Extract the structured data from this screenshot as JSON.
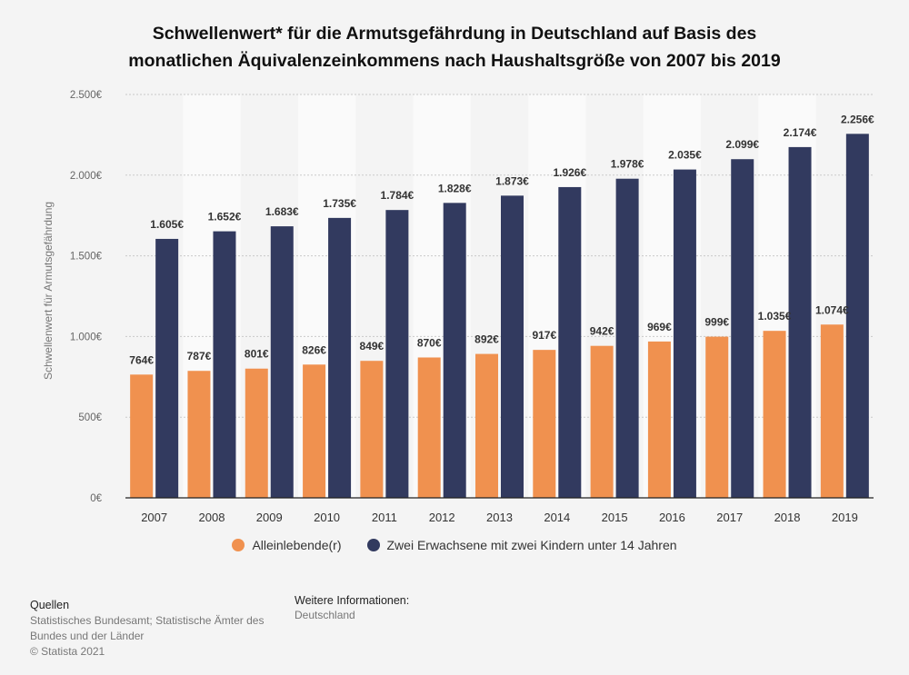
{
  "title_line1": "Schwellenwert* für die Armutsgefährdung in Deutschland auf Basis des",
  "title_line2": "monatlichen Äquivalenzeinkommens nach Haushaltsgröße von 2007 bis 2019",
  "chart_data": {
    "type": "bar",
    "title": "Schwellenwert* für die Armutsgefährdung in Deutschland auf Basis des monatlichen Äquivalenzeinkommens nach Haushaltsgröße von 2007 bis 2019",
    "xlabel": "",
    "ylabel": "Schwellenwert für Armutsgefährdung",
    "ylim": [
      0,
      2500
    ],
    "yticks": [
      0,
      500,
      1000,
      1500,
      2000,
      2500
    ],
    "ytick_labels": [
      "0€",
      "500€",
      "1.000€",
      "1.500€",
      "2.000€",
      "2.500€"
    ],
    "grid": true,
    "legend_position": "bottom",
    "categories": [
      "2007",
      "2008",
      "2009",
      "2010",
      "2011",
      "2012",
      "2013",
      "2014",
      "2015",
      "2016",
      "2017",
      "2018",
      "2019"
    ],
    "series": [
      {
        "name": "Alleinlebende(r)",
        "color": "#f0914f",
        "values": [
          764,
          787,
          801,
          826,
          849,
          870,
          892,
          917,
          942,
          969,
          999,
          1035,
          1074
        ],
        "labels": [
          "764€",
          "787€",
          "801€",
          "826€",
          "849€",
          "870€",
          "892€",
          "917€",
          "942€",
          "969€",
          "999€",
          "1.035€",
          "1.074€"
        ]
      },
      {
        "name": "Zwei Erwachsene mit zwei Kindern unter 14 Jahren",
        "color": "#323a5f",
        "values": [
          1605,
          1652,
          1683,
          1735,
          1784,
          1828,
          1873,
          1926,
          1978,
          2035,
          2099,
          2174,
          2256
        ],
        "labels": [
          "1.605€",
          "1.652€",
          "1.683€",
          "1.735€",
          "1.784€",
          "1.828€",
          "1.873€",
          "1.926€",
          "1.978€",
          "2.035€",
          "2.099€",
          "2.174€",
          "2.256€"
        ]
      }
    ]
  },
  "footer": {
    "sources_heading": "Quellen",
    "sources_line1": "Statistisches Bundesamt; Statistische Ämter des",
    "sources_line2": "Bundes und der Länder",
    "copyright": "© Statista 2021",
    "info_heading": "Weitere Informationen:",
    "info_text": "Deutschland"
  }
}
